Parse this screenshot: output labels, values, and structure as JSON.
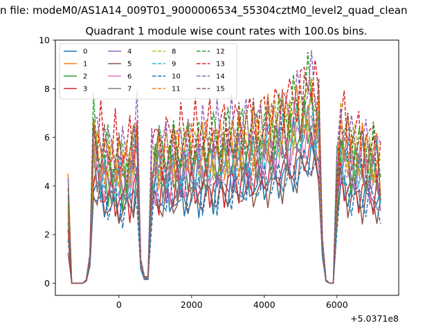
{
  "chart_data": {
    "type": "line",
    "suptitle": "n file: modeM0/AS1A14_009T01_9000006534_55304cztM0_level2_quad_clean",
    "title": "Quadrant 1 module wise count rates with 100.0s bins.",
    "xlabel": "",
    "ylabel": "",
    "x_offset_label": "+5.0371e8",
    "xlim": [
      -1750,
      7700
    ],
    "ylim": [
      -0.5,
      10.0
    ],
    "x_ticks": [
      0,
      2000,
      4000,
      6000
    ],
    "y_ticks": [
      0,
      2,
      4,
      6,
      8,
      10
    ],
    "grid": false,
    "legend_placement": "top-left",
    "legend_columns": 4,
    "x_start": -1400,
    "x_step": 100,
    "num_points": 87,
    "envelope": [
      0.55,
      0.0,
      0.0,
      0.0,
      0.0,
      0.02,
      0.18,
      1.0,
      0.92,
      0.88,
      0.86,
      0.84,
      0.82,
      0.82,
      0.81,
      0.8,
      0.8,
      0.81,
      0.9,
      1.0,
      0.15,
      0.04,
      0.04,
      0.78,
      0.87,
      0.86,
      0.86,
      0.87,
      0.88,
      0.88,
      0.89,
      0.9,
      0.9,
      0.9,
      0.9,
      0.91,
      0.91,
      0.92,
      0.92,
      0.93,
      0.93,
      0.93,
      0.94,
      0.95,
      0.95,
      0.96,
      0.96,
      0.97,
      0.97,
      0.98,
      0.99,
      0.99,
      1.0,
      1.01,
      1.02,
      1.03,
      1.04,
      1.05,
      1.07,
      1.08,
      1.1,
      1.11,
      1.13,
      1.16,
      1.19,
      1.22,
      1.25,
      1.28,
      1.18,
      1.14,
      0.28,
      0.02,
      0.0,
      0.0,
      0.72,
      1.02,
      0.96,
      0.92,
      0.9,
      0.89,
      0.88,
      0.87,
      0.87,
      0.86,
      0.86,
      0.85,
      0.75
    ],
    "series": [
      {
        "name": "0",
        "level": 4.05,
        "color": "#1f77b4",
        "dashed": false
      },
      {
        "name": "1",
        "level": 6.1,
        "color": "#ff7f0e",
        "dashed": false
      },
      {
        "name": "2",
        "level": 5.25,
        "color": "#2ca02c",
        "dashed": false
      },
      {
        "name": "3",
        "level": 4.3,
        "color": "#d62728",
        "dashed": false
      },
      {
        "name": "4",
        "level": 5.0,
        "color": "#9467bd",
        "dashed": false
      },
      {
        "name": "5",
        "level": 3.85,
        "color": "#8c564b",
        "dashed": false
      },
      {
        "name": "6",
        "level": 5.0,
        "color": "#e377c2",
        "dashed": false
      },
      {
        "name": "7",
        "level": 5.1,
        "color": "#7f7f7f",
        "dashed": false
      },
      {
        "name": "8",
        "level": 5.95,
        "color": "#bcbd22",
        "dashed": true
      },
      {
        "name": "9",
        "level": 5.4,
        "color": "#17becf",
        "dashed": true
      },
      {
        "name": "10",
        "level": 4.0,
        "color": "#1f77b4",
        "dashed": true
      },
      {
        "name": "11",
        "level": 5.85,
        "color": "#ff7f0e",
        "dashed": true
      },
      {
        "name": "12",
        "level": 6.35,
        "color": "#2ca02c",
        "dashed": true
      },
      {
        "name": "13",
        "level": 6.75,
        "color": "#d62728",
        "dashed": true
      },
      {
        "name": "14",
        "level": 6.5,
        "color": "#9467bd",
        "dashed": true
      },
      {
        "name": "15",
        "level": 6.2,
        "color": "#8c564b",
        "dashed": true
      }
    ]
  }
}
